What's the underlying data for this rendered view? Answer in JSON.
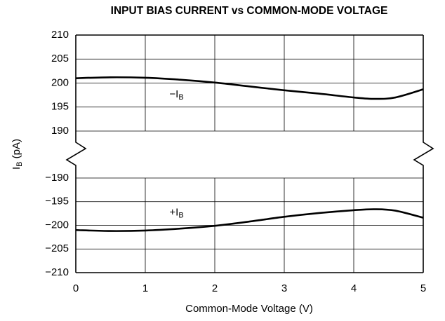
{
  "chart_data": [
    {
      "type": "line",
      "title": "INPUT BIAS CURRENT vs COMMON-MODE VOLTAGE",
      "ylabel": [
        "I",
        "B",
        " (pA)"
      ],
      "x": [
        0,
        0.5,
        1,
        1.5,
        2,
        2.5,
        3,
        3.5,
        4,
        4.3,
        4.6,
        5
      ],
      "series": [
        {
          "label": [
            "−I",
            "B"
          ],
          "color": "#000000",
          "values": [
            201,
            201.2,
            201.1,
            200.7,
            200.1,
            199.3,
            198.5,
            197.8,
            197.0,
            196.7,
            197.0,
            198.7
          ]
        }
      ],
      "xlim": [
        0,
        5
      ],
      "xticks": [
        0,
        1,
        2,
        3,
        4,
        5
      ],
      "ylim": [
        190,
        210
      ],
      "yticks": [
        190,
        195,
        200,
        205,
        210
      ],
      "grid": true
    },
    {
      "type": "line",
      "xlabel": "Common-Mode Voltage (V)",
      "x": [
        0,
        0.5,
        1,
        1.5,
        2,
        2.5,
        3,
        3.5,
        4,
        4.3,
        4.6,
        5
      ],
      "series": [
        {
          "label": [
            "+I",
            "B"
          ],
          "color": "#000000",
          "values": [
            -201,
            -201.2,
            -201.1,
            -200.7,
            -200.1,
            -199.2,
            -198.2,
            -197.4,
            -196.8,
            -196.6,
            -196.9,
            -198.4
          ]
        }
      ],
      "xlim": [
        0,
        5
      ],
      "xticks": [
        0,
        1,
        2,
        3,
        4,
        5
      ],
      "ylim": [
        -210,
        -190
      ],
      "yticks": [
        {
          "value": -210,
          "label": "−210"
        },
        {
          "value": -205,
          "label": "−205"
        },
        {
          "value": -200,
          "label": "−200"
        },
        {
          "value": -195,
          "label": "−195"
        },
        {
          "value": -190,
          "label": "−190"
        }
      ],
      "grid": true
    }
  ]
}
